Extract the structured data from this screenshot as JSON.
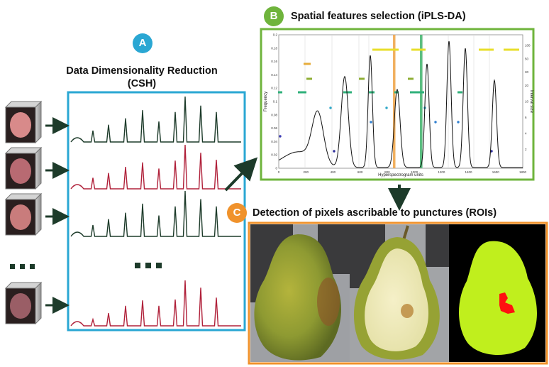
{
  "panel_a": {
    "badge": "A",
    "title_line1": "Data Dimensionality Reduction",
    "title_line2": "(CSH)",
    "ellipsis": "...",
    "colors": {
      "frame": "#2aa7d3",
      "dark_trace": "#1d3b2a",
      "red_trace": "#b0213a",
      "badge": "#2aa7d3"
    }
  },
  "panel_b": {
    "badge": "B",
    "title": "Spatial features selection (iPLS-DA)",
    "colors": {
      "frame": "#6fb43c",
      "badge": "#6fb43c"
    },
    "chart_data": {
      "type": "line",
      "xlabel": "Hyperspectrogram units",
      "ylabel": "Frequency",
      "y2label": "Interval size",
      "xticks": [
        "0",
        "200",
        "400",
        "600",
        "800",
        "1000",
        "1200",
        "1400",
        "1600",
        "1800"
      ],
      "yticks": [
        "0",
        "0.02",
        "0.04",
        "0.06",
        "0.08",
        "0.1",
        "0.12",
        "0.14",
        "0.16",
        "0.18",
        "0.2"
      ],
      "y2ticks": [
        "2",
        "4",
        "6",
        "10",
        "20",
        "30",
        "50",
        "100"
      ]
    }
  },
  "panel_c": {
    "badge": "C",
    "title": "Detection of pixels ascribable to punctures (ROIs)",
    "colors": {
      "frame": "#f0922b",
      "badge": "#f0922b",
      "mask_fruit": "#c0ef1d",
      "mask_roi": "#ff1010"
    }
  }
}
